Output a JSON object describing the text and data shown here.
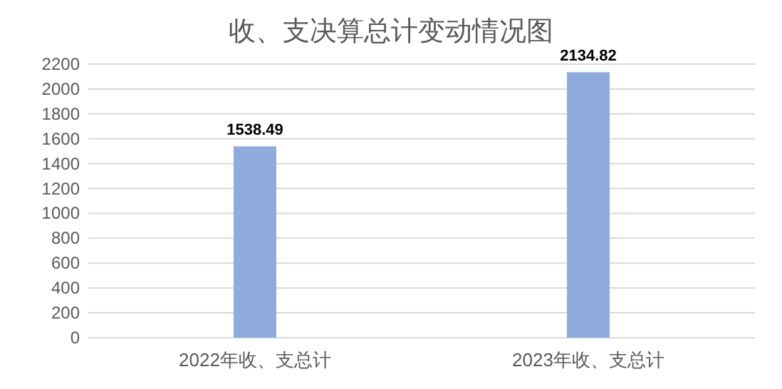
{
  "chart_data": {
    "type": "bar",
    "title": "收、支决算总计变动情况图",
    "categories": [
      "2022年收、支总计",
      "2023年收、支总计"
    ],
    "values": [
      1538.49,
      2134.82
    ],
    "color": "#8faadc",
    "ylim": [
      0,
      2200
    ],
    "yticks": [
      0,
      200,
      400,
      600,
      800,
      1000,
      1200,
      1400,
      1600,
      1800,
      2000,
      2200
    ],
    "grid": "y",
    "data_labels": true
  }
}
